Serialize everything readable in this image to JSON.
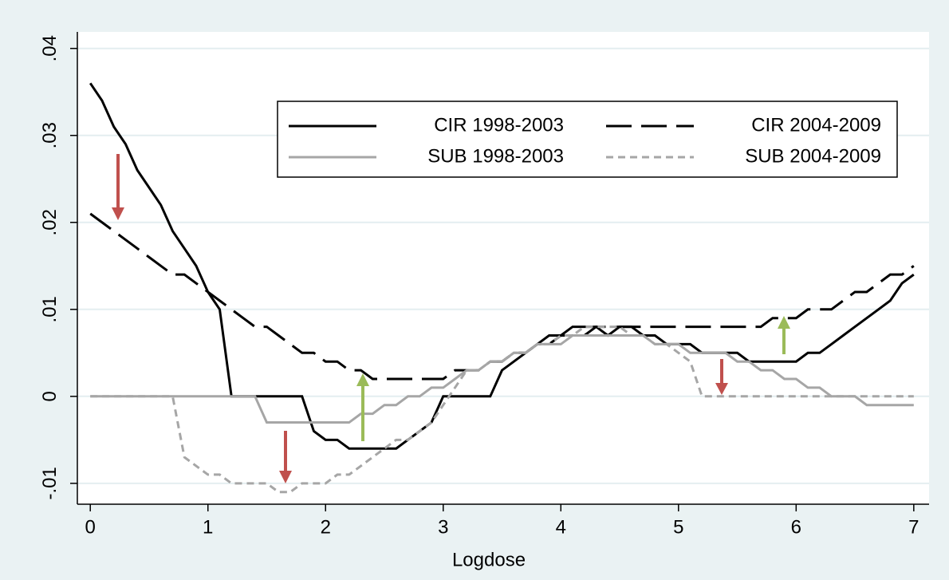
{
  "chart_data": {
    "type": "line",
    "x_label": "Logdose",
    "x": [
      0,
      0.1,
      0.2,
      0.3,
      0.4,
      0.5,
      0.6,
      0.7,
      0.8,
      0.9,
      1,
      1.1,
      1.2,
      1.3,
      1.4,
      1.5,
      1.6,
      1.7,
      1.8,
      1.9,
      2,
      2.1,
      2.2,
      2.3,
      2.4,
      2.5,
      2.6,
      2.7,
      2.8,
      2.9,
      3,
      3.1,
      3.2,
      3.3,
      3.4,
      3.5,
      3.6,
      3.7,
      3.8,
      3.9,
      4,
      4.1,
      4.2,
      4.3,
      4.4,
      4.5,
      4.6,
      4.7,
      4.8,
      4.9,
      5,
      5.1,
      5.2,
      5.3,
      5.4,
      5.5,
      5.6,
      5.7,
      5.8,
      5.9,
      6,
      6.1,
      6.2,
      6.3,
      6.4,
      6.5,
      6.6,
      6.7,
      6.8,
      6.9,
      7
    ],
    "series": [
      {
        "name": "CIR 1998-2003",
        "color": "#000000",
        "line_style": "solid",
        "values": [
          0.036,
          0.034,
          0.031,
          0.029,
          0.026,
          0.024,
          0.022,
          0.019,
          0.017,
          0.015,
          0.012,
          0.01,
          0,
          0,
          0,
          0,
          0,
          0,
          0,
          -0.004,
          -0.005,
          -0.005,
          -0.006,
          -0.006,
          -0.006,
          -0.006,
          -0.006,
          -0.005,
          -0.004,
          -0.003,
          0,
          0,
          0,
          0,
          0,
          0.003,
          0.004,
          0.005,
          0.006,
          0.007,
          0.007,
          0.008,
          0.008,
          0.008,
          0.007,
          0.008,
          0.008,
          0.007,
          0.007,
          0.006,
          0.006,
          0.006,
          0.005,
          0.005,
          0.005,
          0.005,
          0.004,
          0.004,
          0.004,
          0.004,
          0.004,
          0.005,
          0.005,
          0.006,
          0.007,
          0.008,
          0.009,
          0.01,
          0.011,
          0.013,
          0.014
        ]
      },
      {
        "name": "CIR 2004-2009",
        "color": "#000000",
        "line_style": "longdash",
        "values": [
          0.021,
          0.02,
          0.019,
          0.018,
          0.017,
          0.016,
          0.015,
          0.014,
          0.014,
          0.013,
          0.012,
          0.011,
          0.01,
          0.009,
          0.008,
          0.008,
          0.007,
          0.006,
          0.005,
          0.005,
          0.004,
          0.004,
          0.003,
          0.003,
          0.002,
          0.002,
          0.002,
          0.002,
          0.002,
          0.002,
          0.002,
          0.003,
          0.003,
          0.003,
          0.004,
          0.004,
          0.005,
          0.005,
          0.006,
          0.006,
          0.007,
          0.007,
          0.007,
          0.008,
          0.008,
          0.008,
          0.008,
          0.008,
          0.008,
          0.008,
          0.008,
          0.008,
          0.008,
          0.008,
          0.008,
          0.008,
          0.008,
          0.008,
          0.009,
          0.009,
          0.009,
          0.01,
          0.01,
          0.01,
          0.011,
          0.012,
          0.012,
          0.013,
          0.014,
          0.014,
          0.015
        ]
      },
      {
        "name": "SUB 1998-2003",
        "color": "#a6a6a6",
        "line_style": "solid",
        "values": [
          0,
          0,
          0,
          0,
          0,
          0,
          0,
          0,
          0,
          0,
          0,
          0,
          0,
          0,
          0,
          -0.003,
          -0.003,
          -0.003,
          -0.003,
          -0.003,
          -0.003,
          -0.003,
          -0.003,
          -0.002,
          -0.002,
          -0.001,
          -0.001,
          0,
          0,
          0.001,
          0.001,
          0.002,
          0.003,
          0.003,
          0.004,
          0.004,
          0.005,
          0.005,
          0.006,
          0.006,
          0.006,
          0.007,
          0.007,
          0.007,
          0.007,
          0.007,
          0.007,
          0.007,
          0.006,
          0.006,
          0.006,
          0.005,
          0.005,
          0.005,
          0.005,
          0.004,
          0.004,
          0.003,
          0.003,
          0.002,
          0.002,
          0.001,
          0.001,
          0,
          0,
          0,
          -0.001,
          -0.001,
          -0.001,
          -0.001,
          -0.001
        ]
      },
      {
        "name": "SUB 2004-2009",
        "color": "#a6a6a6",
        "line_style": "dash",
        "values": [
          0,
          0,
          0,
          0,
          0,
          0,
          0,
          0,
          -0.007,
          -0.008,
          -0.009,
          -0.009,
          -0.01,
          -0.01,
          -0.01,
          -0.01,
          -0.011,
          -0.011,
          -0.01,
          -0.01,
          -0.01,
          -0.009,
          -0.009,
          -0.008,
          -0.007,
          -0.006,
          -0.005,
          -0.005,
          -0.004,
          -0.003,
          -0.001,
          0.001,
          0.003,
          0.003,
          0.004,
          0.004,
          0.005,
          0.005,
          0.006,
          0.006,
          0.007,
          0.007,
          0.008,
          0.008,
          0.008,
          0.008,
          0.007,
          0.007,
          0.006,
          0.006,
          0.005,
          0.004,
          0,
          0,
          0,
          0,
          0,
          0,
          0,
          0,
          0,
          0,
          0,
          0,
          0,
          0,
          0,
          0,
          0,
          0,
          0
        ]
      }
    ],
    "xlim": [
      -0.11,
      7.13
    ],
    "xticks": [
      0,
      1,
      2,
      3,
      4,
      5,
      6,
      7
    ],
    "ylim": [
      -0.0124,
      0.0419
    ],
    "yticks": [
      {
        "value": -0.01,
        "label": "-.01"
      },
      0,
      {
        "value": 0.01,
        "label": ".01"
      },
      {
        "value": 0.02,
        "label": ".02"
      },
      {
        "value": 0.03,
        "label": ".03"
      },
      {
        "value": 0.04,
        "label": ".04"
      }
    ],
    "grid": true,
    "legend_position": "top"
  }
}
